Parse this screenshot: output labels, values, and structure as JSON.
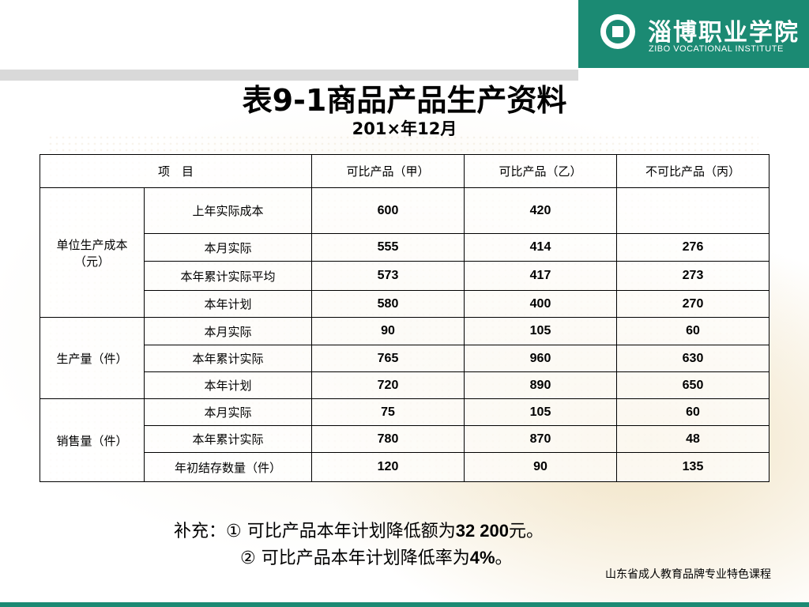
{
  "header": {
    "school_name_cn": "淄博职业学院",
    "school_name_en": "ZIBO VOCATIONAL INSTITUTE"
  },
  "title": "表9-1商品产品生产资料",
  "date": "201×年12月",
  "table": {
    "headers": [
      "项　目",
      "可比产品（甲）",
      "可比产品（乙）",
      "不可比产品（丙）"
    ],
    "groups": [
      {
        "label": "单位生产成本（元）",
        "rows": [
          {
            "item": "上年实际成本",
            "jia": "600",
            "yi": "420",
            "bing": ""
          },
          {
            "item": "本月实际",
            "jia": "555",
            "yi": "414",
            "bing": "276"
          },
          {
            "item": "本年累计实际平均",
            "jia": "573",
            "yi": "417",
            "bing": "273"
          },
          {
            "item": "本年计划",
            "jia": "580",
            "yi": "400",
            "bing": "270"
          }
        ]
      },
      {
        "label": "生产量（件）",
        "rows": [
          {
            "item": "本月实际",
            "jia": "90",
            "yi": "105",
            "bing": "60"
          },
          {
            "item": "本年累计实际",
            "jia": "765",
            "yi": "960",
            "bing": "630"
          },
          {
            "item": "本年计划",
            "jia": "720",
            "yi": "890",
            "bing": "650"
          }
        ]
      },
      {
        "label": "销售量（件）",
        "rows": [
          {
            "item": "本月实际",
            "jia": "75",
            "yi": "105",
            "bing": "60"
          },
          {
            "item": "本年累计实际",
            "jia": "780",
            "yi": "870",
            "bing": "48"
          },
          {
            "item": "年初结存数量（件）",
            "jia": "120",
            "yi": "90",
            "bing": "135"
          }
        ]
      }
    ]
  },
  "footnote": {
    "line1_prefix": "补充：① 可比产品本年计划降低额为",
    "line1_value": "32 200",
    "line1_suffix": "元。",
    "line2_prefix": "② 可比产品本年计划降低率为",
    "line2_value": "4%",
    "line2_suffix": "。"
  },
  "footer_brand": "山东省成人教育品牌专业特色课程",
  "colors": {
    "brand_green": "#1b8a73",
    "top_bar_gray": "#d9d9d9"
  }
}
